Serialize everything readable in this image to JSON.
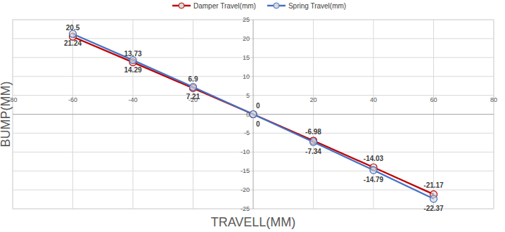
{
  "chart_data": {
    "type": "line",
    "x_label": "TRAVELL(MM)",
    "y_label": "BUMP(MM)",
    "x": [
      -60,
      -40,
      -20,
      0,
      20,
      40,
      60
    ],
    "series": [
      {
        "name": "Damper Travel(mm)",
        "color": "#c00000",
        "marker": "circle",
        "values": [
          20.5,
          13.73,
          6.9,
          0,
          -6.98,
          -14.03,
          -21.17
        ]
      },
      {
        "name": "Spring Travel(mm)",
        "color": "#4472c4",
        "marker": "circle",
        "values": [
          21.24,
          14.29,
          7.21,
          0,
          -7.34,
          -14.79,
          -22.37
        ]
      }
    ],
    "xlim": [
      -80,
      80
    ],
    "xticks": [
      -80,
      -60,
      -40,
      -20,
      20,
      40,
      60,
      80
    ],
    "ylim": [
      -25,
      25
    ],
    "yticks": [
      -25,
      -20,
      -15,
      -10,
      -5,
      0,
      5,
      10,
      15,
      20,
      25
    ],
    "grid": true,
    "legend": "top",
    "data_labels": true
  }
}
